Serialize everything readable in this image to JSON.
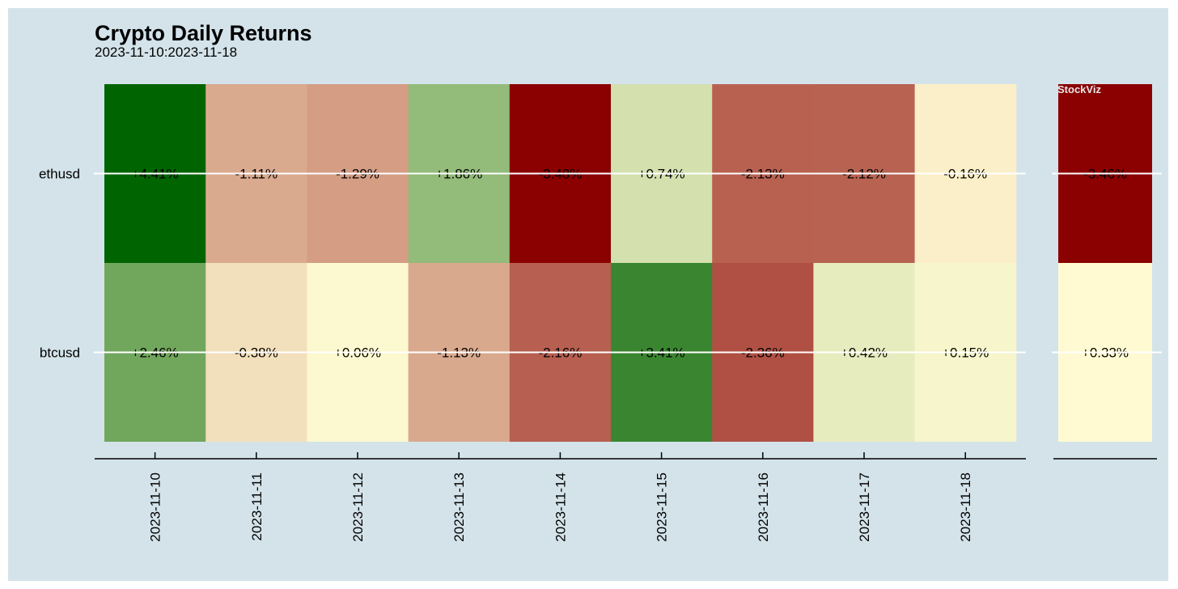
{
  "chart_data": {
    "type": "heatmap",
    "title": "Crypto Daily Returns",
    "subtitle": "2023-11-10:2023-11-18",
    "watermark": "StockViz",
    "x": [
      "2023-11-10",
      "2023-11-11",
      "2023-11-12",
      "2023-11-13",
      "2023-11-14",
      "2023-11-15",
      "2023-11-16",
      "2023-11-17",
      "2023-11-18"
    ],
    "y": [
      "ethusd",
      "btcusd"
    ],
    "values": [
      [
        4.41,
        -1.11,
        -1.29,
        1.86,
        -3.48,
        0.74,
        -2.13,
        -2.12,
        -0.16
      ],
      [
        2.46,
        -0.38,
        0.06,
        -1.13,
        -2.16,
        3.41,
        -2.36,
        0.42,
        0.15
      ]
    ],
    "labels": [
      [
        "+4.41%",
        "-1.11%",
        "-1.29%",
        "+1.86%",
        "-3.48%",
        "+0.74%",
        "-2.13%",
        "-2.12%",
        "-0.16%"
      ],
      [
        "+2.46%",
        "-0.38%",
        "+0.06%",
        "-1.13%",
        "-2.16%",
        "+3.41%",
        "-2.36%",
        "+0.42%",
        "+0.15%"
      ]
    ],
    "summary_values": [
      -3.46,
      0.33
    ],
    "summary_labels": [
      "-3.46%",
      "+0.33%"
    ],
    "colors": {
      "background": "#d4e3ea",
      "high": "#006400",
      "mid": "#fffad2",
      "low": "#8b0000"
    }
  }
}
